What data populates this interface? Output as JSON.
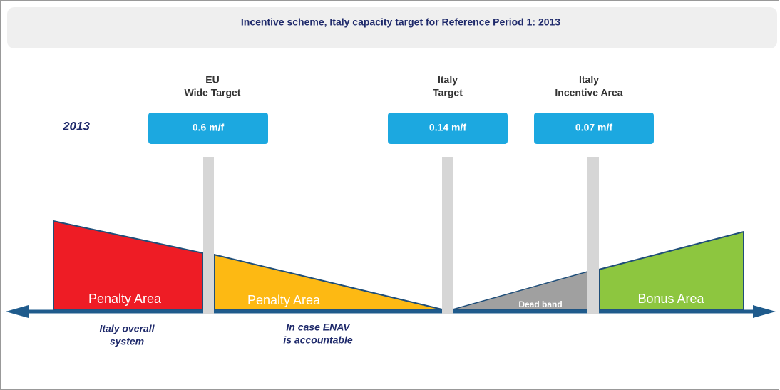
{
  "header": {
    "title": "Incentive scheme, Italy capacity target for Reference Period 1: 2013"
  },
  "year": "2013",
  "targets": [
    {
      "label": [
        "EU",
        "Wide Target"
      ],
      "value": "0.6 m/f"
    },
    {
      "label": [
        "Italy",
        "Target"
      ],
      "value": "0.14 m/f"
    },
    {
      "label": [
        "Italy",
        "Incentive Area"
      ],
      "value": "0.07  m/f"
    }
  ],
  "areas": [
    "Penalty Area",
    "Penalty Area",
    "Dead band",
    "Bonus Area"
  ],
  "notes": [
    [
      "Italy overall",
      "system"
    ],
    [
      "In case ENAV",
      "is accountable"
    ]
  ]
}
